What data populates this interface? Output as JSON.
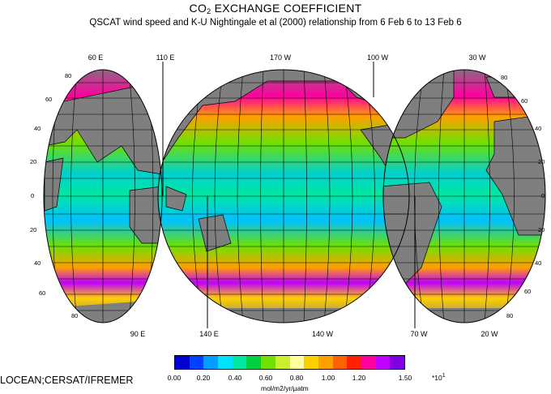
{
  "title": {
    "prefix": "CO",
    "sub": "2",
    "rest": " EXCHANGE COEFFICIENT"
  },
  "subtitle": "QSCAT wind speed and K-U Nightingale et al (2000) relationship from  6 Feb  6 to 13 Feb  6",
  "top_longitudes": [
    "60 E",
    "110 E",
    "170 W",
    "100 W",
    "30 W"
  ],
  "bottom_longitudes": [
    "90 E",
    "140 E",
    "140 W",
    "70 W",
    "20 W"
  ],
  "lat_labels_left": [
    "80",
    "60",
    "40",
    "20",
    "0",
    "20",
    "40",
    "60",
    "80"
  ],
  "lat_labels_right": [
    "80",
    "60",
    "40",
    "20",
    "0",
    "20",
    "40",
    "60",
    "80"
  ],
  "legend": {
    "colors": [
      "#0000d0",
      "#0040ff",
      "#00a0ff",
      "#00e0ff",
      "#00e8a0",
      "#00d040",
      "#70e000",
      "#c8f030",
      "#ffffa0",
      "#ffd000",
      "#ffa000",
      "#ff6000",
      "#ff2000",
      "#ff00a0",
      "#c000ff",
      "#8000e0"
    ],
    "tick_labels": [
      "0.00",
      "0.20",
      "0.40",
      "0.60",
      "0.80",
      "1.00",
      "1.20",
      "1.50"
    ],
    "units": "mol/m2/yr/µatm",
    "scale": "*10",
    "scale_exp": "1"
  },
  "credit": "LOCEAN;CERSAT/IFREMER",
  "colors": {
    "land": "#7f7f7f",
    "grid": "#000000"
  }
}
